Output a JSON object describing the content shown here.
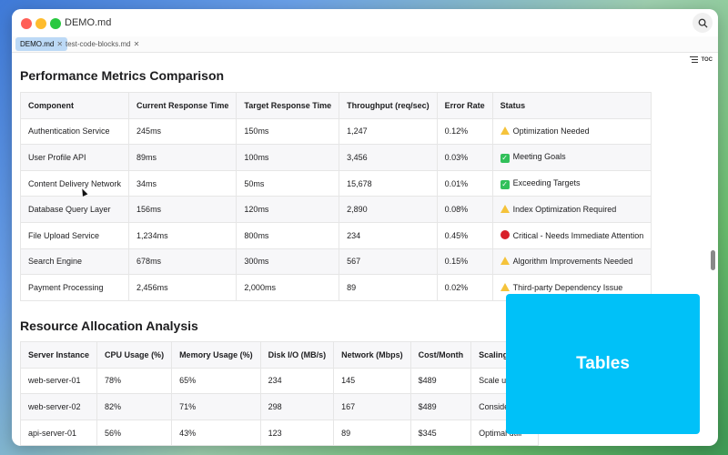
{
  "window": {
    "title": "DEMO.md"
  },
  "tabs": [
    {
      "label": "DEMO.md",
      "active": true
    },
    {
      "label": "test-code-blocks.md",
      "active": false
    }
  ],
  "toc_label": "TOC",
  "overlay_label": "Tables",
  "section1": {
    "title": "Performance Metrics Comparison",
    "headers": [
      "Component",
      "Current Response Time",
      "Target Response Time",
      "Throughput (req/sec)",
      "Error Rate",
      "Status"
    ],
    "rows": [
      [
        "Authentication Service",
        "245ms",
        "150ms",
        "1,247",
        "0.12%",
        "Optimization Needed",
        "warn"
      ],
      [
        "User Profile API",
        "89ms",
        "100ms",
        "3,456",
        "0.03%",
        "Meeting Goals",
        "check"
      ],
      [
        "Content Delivery Network",
        "34ms",
        "50ms",
        "15,678",
        "0.01%",
        "Exceeding Targets",
        "check"
      ],
      [
        "Database Query Layer",
        "156ms",
        "120ms",
        "2,890",
        "0.08%",
        "Index Optimization Required",
        "warn"
      ],
      [
        "File Upload Service",
        "1,234ms",
        "800ms",
        "234",
        "0.45%",
        "Critical - Needs Immediate Attention",
        "red"
      ],
      [
        "Search Engine",
        "678ms",
        "300ms",
        "567",
        "0.15%",
        "Algorithm Improvements Needed",
        "warn"
      ],
      [
        "Payment Processing",
        "2,456ms",
        "2,000ms",
        "89",
        "0.02%",
        "Third-party Dependency Issue",
        "warn"
      ]
    ]
  },
  "section2": {
    "title": "Resource Allocation Analysis",
    "headers": [
      "Server Instance",
      "CPU Usage (%)",
      "Memory Usage (%)",
      "Disk I/O (MB/s)",
      "Network (Mbps)",
      "Cost/Month",
      "Scaling Reco"
    ],
    "rows": [
      [
        "web-server-01",
        "78%",
        "65%",
        "234",
        "145",
        "$489",
        "Scale up dur"
      ],
      [
        "web-server-02",
        "82%",
        "71%",
        "298",
        "167",
        "$489",
        "Consider loa"
      ],
      [
        "api-server-01",
        "56%",
        "43%",
        "123",
        "89",
        "$345",
        "Optimal utili"
      ],
      [
        "",
        "",
        "",
        "",
        "",
        "",
        ""
      ]
    ]
  }
}
